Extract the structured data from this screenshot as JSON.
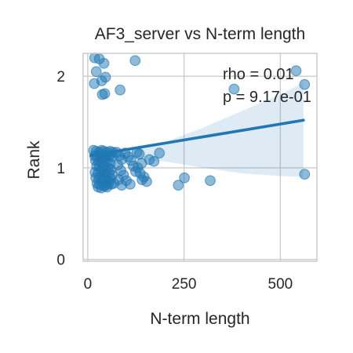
{
  "chart_data": {
    "type": "scatter",
    "title": "AF3_server vs N-term length",
    "xlabel": "N-term length",
    "ylabel": "Rank",
    "xlim": [
      -12,
      595
    ],
    "ylim": [
      -0.02,
      2.25
    ],
    "xticks": [
      0,
      250,
      500
    ],
    "xtick_labels": [
      "0",
      "250",
      "500"
    ],
    "yticks": [
      0,
      1,
      2
    ],
    "ytick_labels": [
      "0",
      "1",
      "2"
    ],
    "grid": true,
    "annotation": [
      "rho = 0.01",
      "p = 9.17e-01"
    ],
    "point_color": "#1f77b4",
    "points": [
      [
        18,
        2.2
      ],
      [
        30,
        2.19
      ],
      [
        42,
        2.14
      ],
      [
        123,
        2.17
      ],
      [
        22,
        2.05
      ],
      [
        46,
        1.99
      ],
      [
        17,
        1.92
      ],
      [
        36,
        1.95
      ],
      [
        44,
        1.81
      ],
      [
        38,
        1.8
      ],
      [
        84,
        1.85
      ],
      [
        380,
        1.86
      ],
      [
        541,
        2.06
      ],
      [
        563,
        1.91
      ],
      [
        15,
        1.19
      ],
      [
        22,
        1.18
      ],
      [
        30,
        1.17
      ],
      [
        36,
        1.19
      ],
      [
        42,
        1.18
      ],
      [
        50,
        1.17
      ],
      [
        58,
        1.18
      ],
      [
        66,
        1.17
      ],
      [
        18,
        1.13
      ],
      [
        25,
        1.12
      ],
      [
        33,
        1.13
      ],
      [
        40,
        1.11
      ],
      [
        47,
        1.12
      ],
      [
        55,
        1.13
      ],
      [
        62,
        1.12
      ],
      [
        20,
        1.08
      ],
      [
        28,
        1.07
      ],
      [
        35,
        1.06
      ],
      [
        43,
        1.08
      ],
      [
        51,
        1.07
      ],
      [
        58,
        1.05
      ],
      [
        23,
        1.02
      ],
      [
        30,
        1.01
      ],
      [
        38,
        0.99
      ],
      [
        45,
        1.01
      ],
      [
        53,
        1.0
      ],
      [
        60,
        0.98
      ],
      [
        19,
        0.95
      ],
      [
        27,
        0.94
      ],
      [
        34,
        0.96
      ],
      [
        41,
        0.95
      ],
      [
        49,
        0.93
      ],
      [
        56,
        0.94
      ],
      [
        64,
        0.92
      ],
      [
        21,
        0.89
      ],
      [
        29,
        0.88
      ],
      [
        36,
        0.87
      ],
      [
        44,
        0.89
      ],
      [
        52,
        0.86
      ],
      [
        59,
        0.88
      ],
      [
        24,
        0.83
      ],
      [
        31,
        0.82
      ],
      [
        39,
        0.84
      ],
      [
        46,
        0.81
      ],
      [
        54,
        0.83
      ],
      [
        61,
        0.82
      ],
      [
        68,
        0.83
      ],
      [
        27,
        0.79
      ],
      [
        35,
        0.78
      ],
      [
        43,
        0.8
      ],
      [
        50,
        0.79
      ],
      [
        75,
        1.17
      ],
      [
        82,
        1.13
      ],
      [
        88,
        1.09
      ],
      [
        78,
        1.03
      ],
      [
        86,
        0.97
      ],
      [
        93,
        0.92
      ],
      [
        80,
        0.87
      ],
      [
        97,
        1.16
      ],
      [
        105,
        1.12
      ],
      [
        112,
        1.08
      ],
      [
        118,
        1.02
      ],
      [
        124,
        0.96
      ],
      [
        130,
        1.0
      ],
      [
        136,
        0.94
      ],
      [
        100,
        0.86
      ],
      [
        110,
        0.82
      ],
      [
        88,
        0.81
      ],
      [
        140,
        1.05
      ],
      [
        146,
        0.9
      ],
      [
        153,
        0.85
      ],
      [
        160,
        1.09
      ],
      [
        128,
        1.17
      ],
      [
        134,
        1.15
      ],
      [
        172,
        1.07
      ],
      [
        186,
        1.16
      ],
      [
        141,
        0.87
      ],
      [
        235,
        0.81
      ],
      [
        251,
        0.89
      ],
      [
        318,
        0.86
      ],
      [
        563,
        0.93
      ]
    ],
    "regression": {
      "x_start": 8,
      "x_end": 560,
      "y_start": 1.135,
      "y_end": 1.52
    },
    "confidence_band": {
      "x": [
        8,
        100,
        200,
        300,
        400,
        500,
        560
      ],
      "upper": [
        1.19,
        1.2,
        1.28,
        1.44,
        1.62,
        1.8,
        1.93
      ],
      "lower": [
        1.07,
        1.1,
        1.07,
        1.0,
        0.94,
        0.91,
        0.9
      ]
    }
  }
}
